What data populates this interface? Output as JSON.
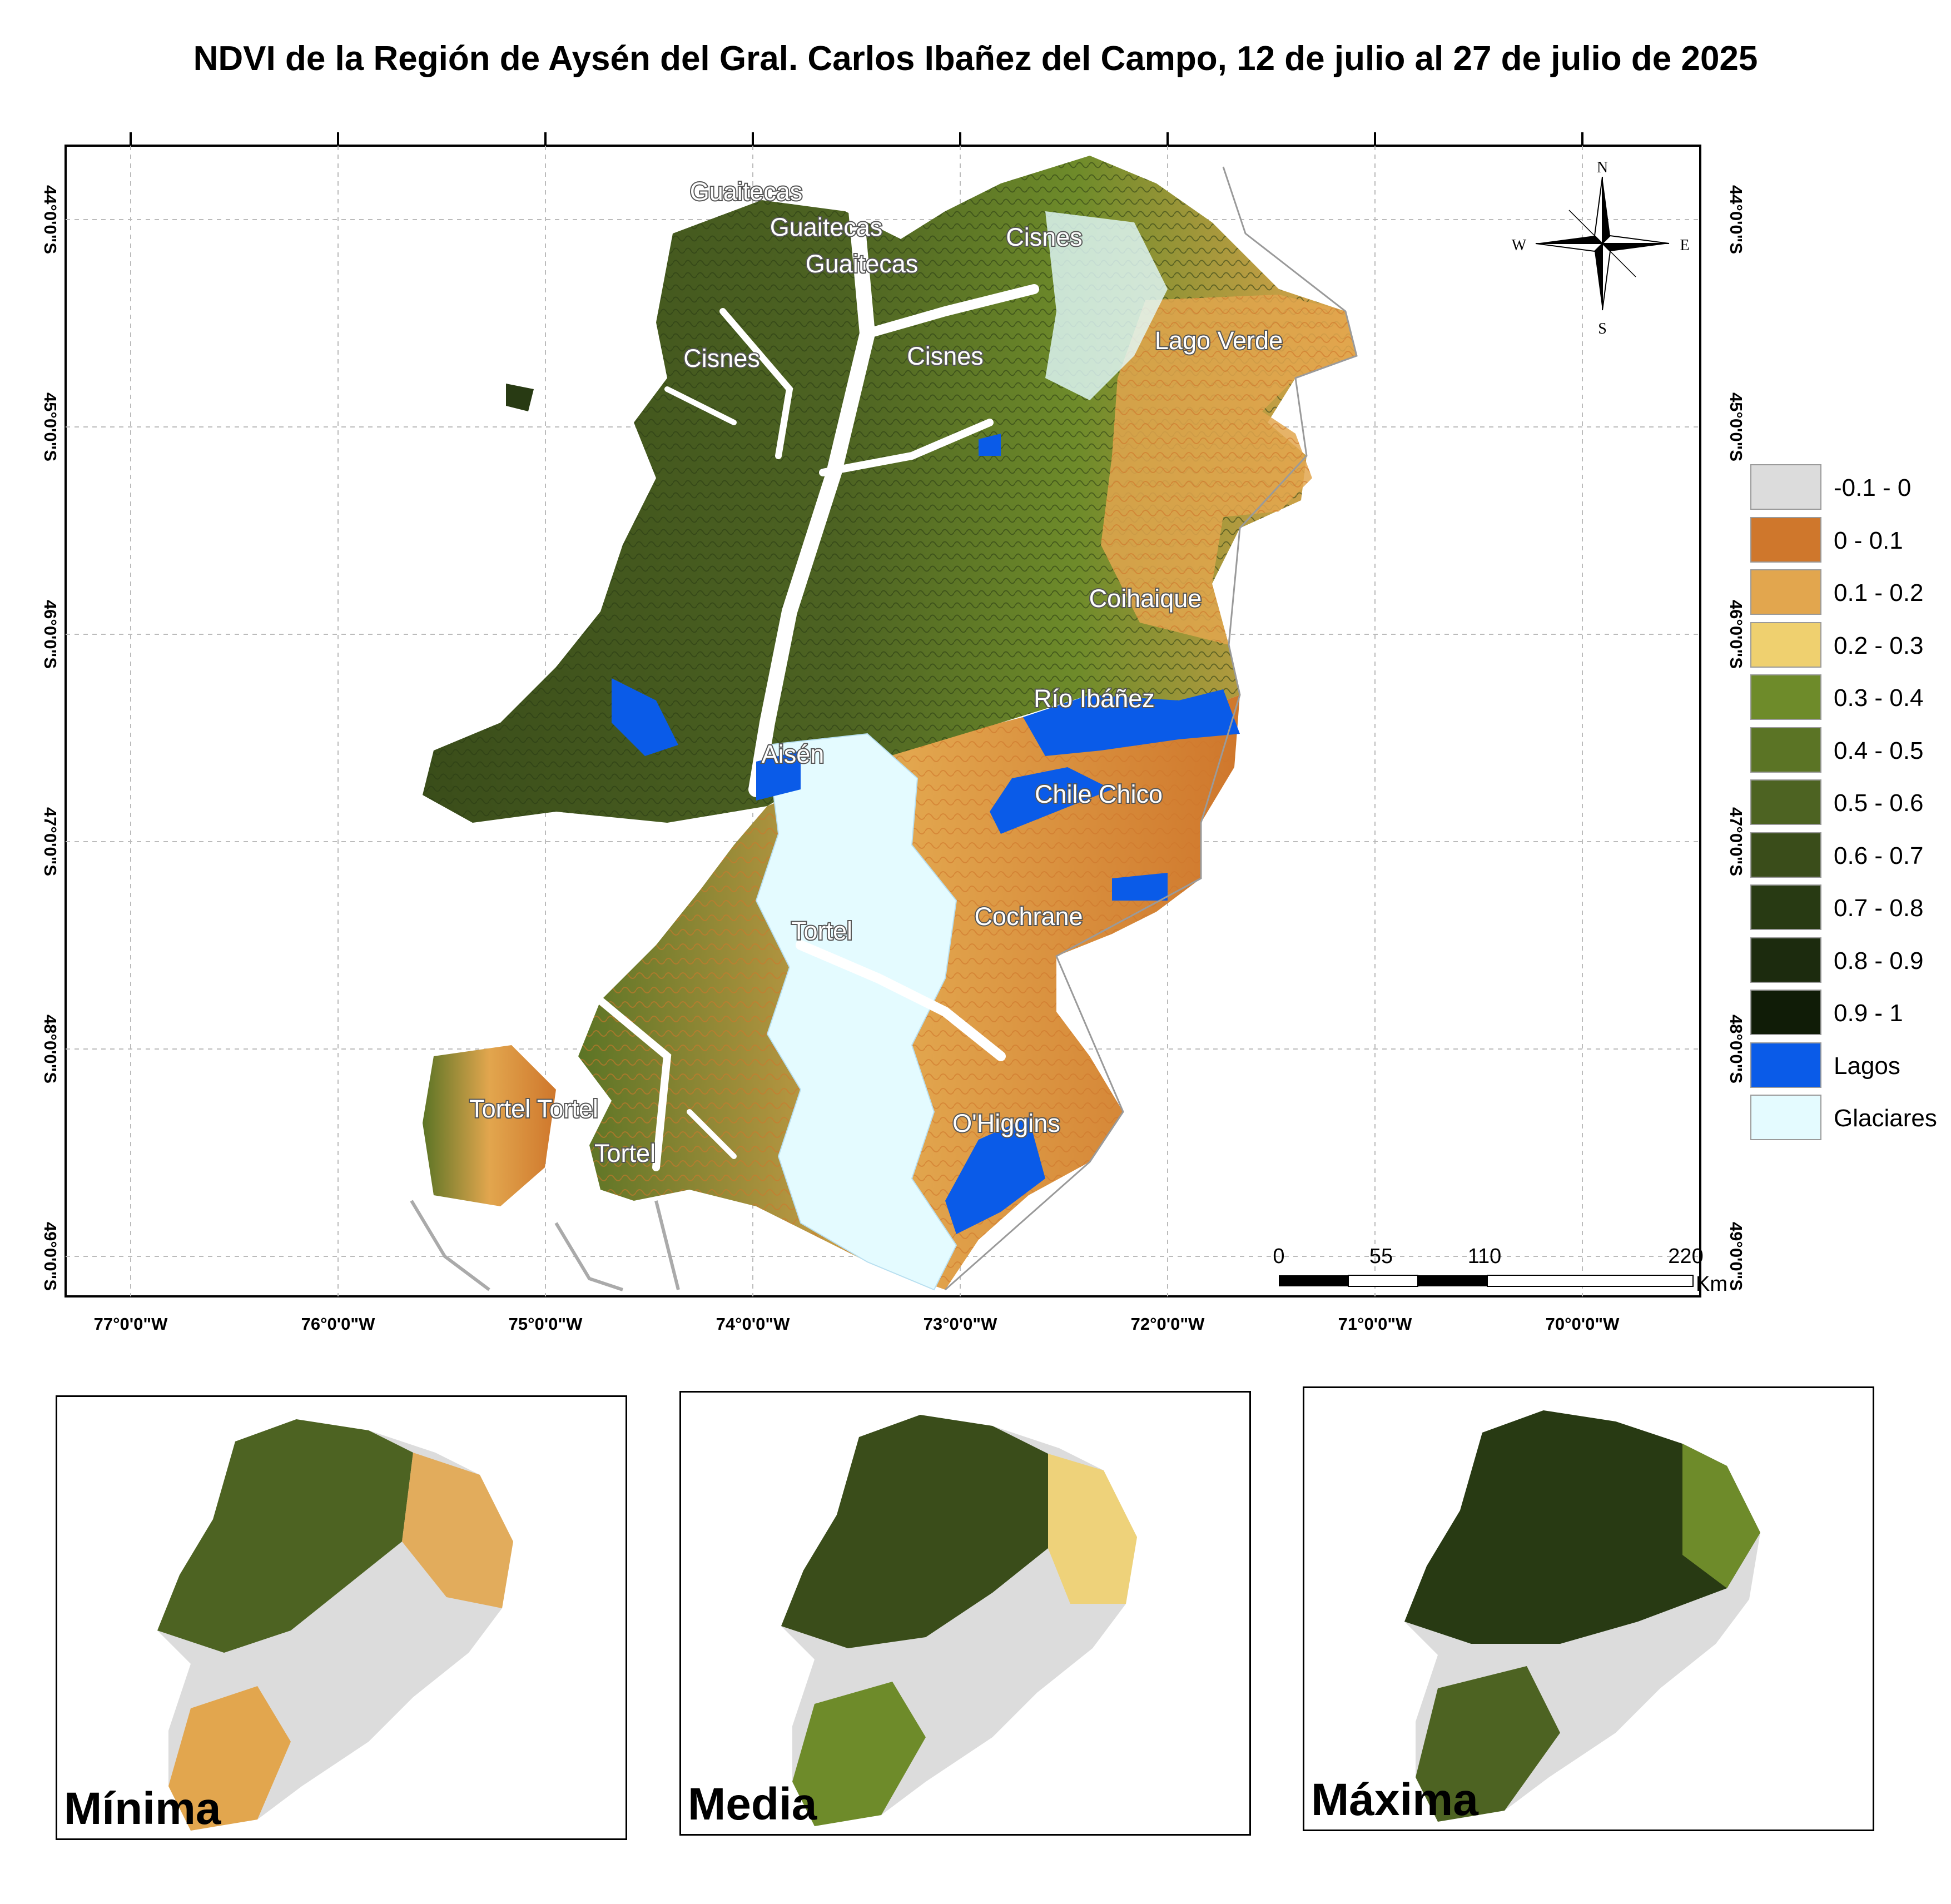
{
  "title": "NDVI de la Región de Aysén del Gral. Carlos Ibañez del Campo, 12 de julio al 27 de julio de 2025",
  "axes": {
    "lon_labels": [
      "77°0'0\"W",
      "76°0'0\"W",
      "75°0'0\"W",
      "74°0'0\"W",
      "73°0'0\"W",
      "72°0'0\"W",
      "71°0'0\"W",
      "70°0'0\"W"
    ],
    "lat_labels": [
      "44°0'0\"S",
      "45°0'0\"S",
      "46°0'0\"S",
      "47°0'0\"S",
      "48°0'0\"S",
      "49°0'0\"S"
    ]
  },
  "places": [
    {
      "name": "Guaitecas"
    },
    {
      "name": "Guaitecas"
    },
    {
      "name": "Guaitecas"
    },
    {
      "name": "Cisnes"
    },
    {
      "name": "Cisnes"
    },
    {
      "name": "Cisnes"
    },
    {
      "name": "Lago Verde"
    },
    {
      "name": "Coihaique"
    },
    {
      "name": "Río Ibáñez"
    },
    {
      "name": "Aisén"
    },
    {
      "name": "Chile Chico"
    },
    {
      "name": "Tortel"
    },
    {
      "name": "Cochrane"
    },
    {
      "name": "Tortel Tortel"
    },
    {
      "name": "Tortel"
    },
    {
      "name": "O'Higgins"
    }
  ],
  "compass": {
    "n": "N",
    "s": "S",
    "e": "E",
    "w": "W"
  },
  "scale_bar": {
    "ticks": [
      "0",
      "55",
      "110",
      "220"
    ],
    "unit": "Km"
  },
  "legend": [
    {
      "label": "-0.1 - 0",
      "color": "#dcdcdc"
    },
    {
      "label": "0 - 0.1",
      "color": "#cf772c"
    },
    {
      "label": "0.1 - 0.2",
      "color": "#e2a64e"
    },
    {
      "label": "0.2 - 0.3",
      "color": "#efd06f"
    },
    {
      "label": "0.3 - 0.4",
      "color": "#6e8b2a"
    },
    {
      "label": "0.4 - 0.5",
      "color": "#5b7425"
    },
    {
      "label": "0.5 - 0.6",
      "color": "#4d6322"
    },
    {
      "label": "0.6 - 0.7",
      "color": "#3a4d1a"
    },
    {
      "label": "0.7 - 0.8",
      "color": "#283a13"
    },
    {
      "label": "0.8 - 0.9",
      "color": "#1c2b0e"
    },
    {
      "label": "0.9 - 1",
      "color": "#101c07"
    },
    {
      "label": "Lagos",
      "color": "#0a5be8"
    },
    {
      "label": "Glaciares",
      "color": "#e4fbff"
    }
  ],
  "insets": [
    {
      "label": "Mínima"
    },
    {
      "label": "Media"
    },
    {
      "label": "Máxima"
    }
  ]
}
